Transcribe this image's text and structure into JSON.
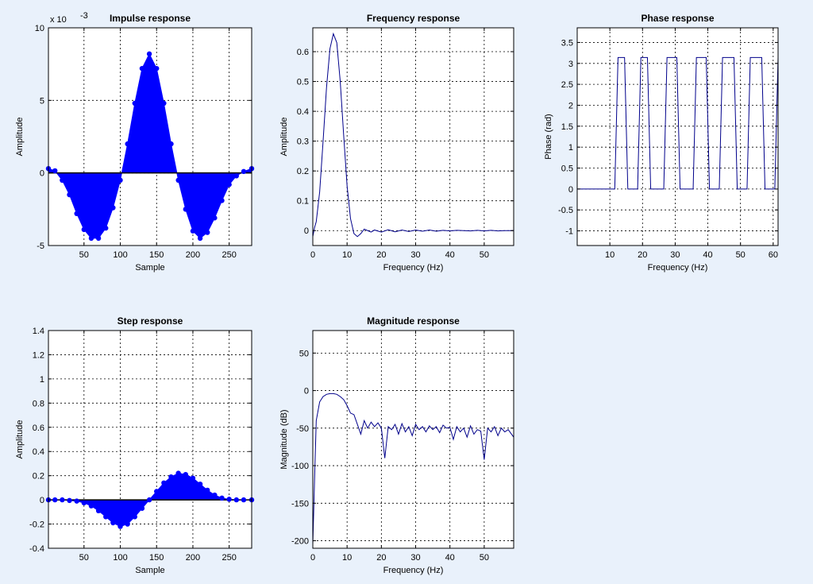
{
  "colors": {
    "background": "#e9f1fb",
    "plot_bg": "#ffffff",
    "axis": "#000000",
    "series": "#0000ff",
    "series_line": "#00008b"
  },
  "chart_data": [
    {
      "id": "impulse",
      "type": "area",
      "style": "stem-fill",
      "title": "Impulse response",
      "xlabel": "Sample",
      "ylabel": "Amplitude",
      "exponent_label": "x 10",
      "exponent_value": "-3",
      "xlim": [
        1,
        281
      ],
      "ylim": [
        -5,
        10
      ],
      "xticks": [
        50,
        100,
        150,
        200,
        250
      ],
      "yticks": [
        -5,
        0,
        5,
        10
      ],
      "x": [
        1,
        10,
        20,
        30,
        40,
        50,
        60,
        70,
        80,
        90,
        100,
        110,
        120,
        130,
        140,
        150,
        160,
        170,
        180,
        190,
        200,
        210,
        220,
        230,
        240,
        250,
        260,
        270,
        281
      ],
      "values": [
        0.3,
        0.15,
        -0.5,
        -1.5,
        -2.8,
        -3.9,
        -4.5,
        -4.5,
        -3.8,
        -2.4,
        -0.5,
        2.0,
        4.8,
        7.2,
        8.2,
        7.2,
        4.8,
        2.0,
        -0.5,
        -2.5,
        -4.0,
        -4.5,
        -4.1,
        -3.1,
        -1.9,
        -0.8,
        -0.2,
        0.1,
        0.3
      ]
    },
    {
      "id": "frequency",
      "type": "line",
      "title": "Frequency response",
      "xlabel": "Frequency (Hz)",
      "ylabel": "Amplitude",
      "xlim": [
        0,
        58.6
      ],
      "ylim": [
        -0.05,
        0.68
      ],
      "xticks": [
        0,
        10,
        20,
        30,
        40,
        50
      ],
      "yticks": [
        0,
        0.1,
        0.2,
        0.3,
        0.4,
        0.5,
        0.6
      ],
      "x": [
        0,
        0.5,
        1,
        2,
        3,
        4,
        5,
        6,
        7,
        8,
        9,
        10,
        11,
        12,
        13,
        14,
        15,
        16,
        17,
        18,
        20,
        22,
        24,
        26,
        28,
        30,
        32,
        34,
        36,
        38,
        40,
        42,
        44,
        46,
        48,
        50,
        52,
        54,
        56,
        58.6
      ],
      "values": [
        -0.02,
        0.01,
        0.03,
        0.13,
        0.3,
        0.48,
        0.61,
        0.66,
        0.63,
        0.5,
        0.32,
        0.15,
        0.04,
        -0.01,
        -0.02,
        -0.01,
        0.005,
        0.0,
        -0.005,
        0.002,
        -0.005,
        0.003,
        -0.004,
        0.002,
        -0.003,
        0.002,
        -0.002,
        0.002,
        -0.002,
        0.001,
        -0.001,
        0.001,
        0.0,
        -0.001,
        0.001,
        -0.001,
        0.001,
        -0.001,
        0.0,
        0.0
      ]
    },
    {
      "id": "phase",
      "type": "line",
      "style": "step",
      "title": "Phase response",
      "xlabel": "Frequency (Hz)",
      "ylabel": "Phase (rad)",
      "xlim": [
        0,
        61.5
      ],
      "ylim": [
        -1.35,
        3.85
      ],
      "xticks": [
        10,
        20,
        30,
        40,
        50,
        60
      ],
      "yticks": [
        -1,
        -0.5,
        0,
        0.5,
        1,
        1.5,
        2,
        2.5,
        3,
        3.5
      ],
      "x": [
        0,
        11.5,
        12.5,
        14.5,
        15.5,
        18.5,
        19.5,
        21.5,
        22.5,
        26.5,
        27.5,
        30.5,
        31.5,
        35.5,
        36.5,
        39.5,
        40.5,
        43.5,
        44.5,
        48,
        49,
        52,
        53,
        56.5,
        57.5,
        60.5,
        61.5
      ],
      "values": [
        0,
        0,
        3.14,
        3.14,
        0,
        0,
        3.14,
        3.14,
        0,
        0,
        3.14,
        3.14,
        0,
        0,
        3.14,
        3.14,
        0,
        0,
        3.14,
        3.14,
        0,
        0,
        3.14,
        3.14,
        0,
        0,
        3.14
      ]
    },
    {
      "id": "step",
      "type": "area",
      "style": "stem-fill",
      "title": "Step response",
      "xlabel": "Sample",
      "ylabel": "Amplitude",
      "xlim": [
        1,
        281
      ],
      "ylim": [
        -0.4,
        1.4
      ],
      "xticks": [
        50,
        100,
        150,
        200,
        250
      ],
      "yticks": [
        -0.4,
        -0.2,
        0,
        0.2,
        0.4,
        0.6,
        0.8,
        1,
        1.2,
        1.4
      ],
      "x": [
        1,
        10,
        20,
        30,
        40,
        50,
        60,
        70,
        80,
        90,
        100,
        110,
        120,
        130,
        140,
        150,
        160,
        170,
        180,
        190,
        200,
        210,
        220,
        230,
        240,
        250,
        260,
        270,
        281
      ],
      "values": [
        0.0,
        0.0,
        0.0,
        -0.005,
        -0.01,
        -0.025,
        -0.05,
        -0.09,
        -0.14,
        -0.19,
        -0.22,
        -0.2,
        -0.14,
        -0.07,
        0.0,
        0.07,
        0.14,
        0.19,
        0.22,
        0.21,
        0.18,
        0.13,
        0.08,
        0.04,
        0.015,
        0.005,
        0.0,
        0.0,
        0.0
      ]
    },
    {
      "id": "magnitude",
      "type": "line",
      "title": "Magnitude response",
      "xlabel": "Frequency (Hz)",
      "ylabel": "Magnitude (dB)",
      "xlim": [
        0,
        58.6
      ],
      "ylim": [
        -210,
        80
      ],
      "xticks": [
        0,
        10,
        20,
        30,
        40,
        50
      ],
      "yticks": [
        -200,
        -150,
        -100,
        -50,
        0,
        50
      ],
      "x": [
        0,
        0.5,
        1,
        2,
        3,
        4,
        5,
        6,
        7,
        8,
        9,
        10,
        11,
        12,
        13,
        14,
        15,
        16,
        17,
        18,
        19,
        20,
        21,
        22,
        23,
        24,
        25,
        26,
        27,
        28,
        29,
        30,
        31,
        32,
        33,
        34,
        35,
        36,
        37,
        38,
        39,
        40,
        41,
        42,
        43,
        44,
        45,
        46,
        47,
        48,
        49,
        50,
        51,
        52,
        53,
        54,
        55,
        56,
        57,
        58.6
      ],
      "values": [
        -205,
        -120,
        -40,
        -15,
        -8,
        -5,
        -4,
        -4,
        -5,
        -8,
        -12,
        -20,
        -30,
        -32,
        -45,
        -58,
        -40,
        -50,
        -42,
        -48,
        -43,
        -50,
        -90,
        -48,
        -52,
        -45,
        -58,
        -44,
        -55,
        -48,
        -60,
        -45,
        -52,
        -48,
        -55,
        -47,
        -52,
        -48,
        -56,
        -46,
        -50,
        -49,
        -65,
        -48,
        -55,
        -50,
        -62,
        -47,
        -58,
        -52,
        -54,
        -92,
        -50,
        -55,
        -48,
        -60,
        -50,
        -55,
        -52,
        -62
      ]
    }
  ]
}
